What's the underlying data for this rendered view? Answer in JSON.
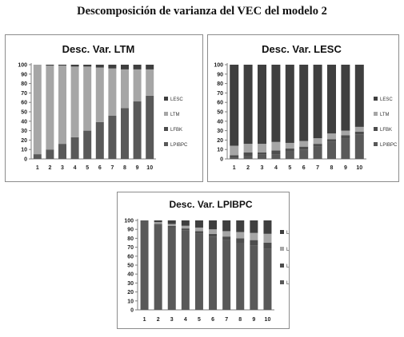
{
  "page": {
    "title": "Descomposición de varianza del VEC del modelo 2"
  },
  "colors": {
    "LESC": "#3f3f3f",
    "LTM": "#a6a6a6",
    "LFBK": "#4d4d4d",
    "LPIBPC": "#595959"
  },
  "chart_data": [
    {
      "type": "bar",
      "stacked": true,
      "title": "Desc. Var. LTM",
      "categories": [
        "1",
        "2",
        "3",
        "4",
        "5",
        "6",
        "7",
        "8",
        "9",
        "10"
      ],
      "ylim": [
        0,
        100
      ],
      "yticks": [
        0,
        10,
        20,
        30,
        40,
        50,
        60,
        70,
        80,
        90,
        100
      ],
      "legend_position": "right",
      "series": [
        {
          "name": "LPIBPC",
          "values": [
            5,
            10,
            16,
            23,
            30,
            39,
            46,
            54,
            61,
            67
          ]
        },
        {
          "name": "LFBK",
          "values": [
            0,
            0,
            0,
            0,
            0,
            0,
            0,
            0,
            0,
            0
          ]
        },
        {
          "name": "LTM",
          "values": [
            95,
            89,
            83,
            75,
            68,
            58,
            50,
            41,
            34,
            28
          ]
        },
        {
          "name": "LESC",
          "values": [
            0,
            1,
            1,
            2,
            2,
            3,
            4,
            5,
            5,
            5
          ]
        }
      ]
    },
    {
      "type": "bar",
      "stacked": true,
      "title": "Desc. Var. LESC",
      "categories": [
        "1",
        "2",
        "3",
        "4",
        "5",
        "6",
        "7",
        "8",
        "9",
        "10"
      ],
      "ylim": [
        0,
        100
      ],
      "yticks": [
        0,
        10,
        20,
        30,
        40,
        50,
        60,
        70,
        80,
        90,
        100
      ],
      "legend_position": "right",
      "series": [
        {
          "name": "LPIBPC",
          "values": [
            1,
            3,
            5,
            5,
            8,
            10,
            13,
            18,
            22,
            26
          ]
        },
        {
          "name": "LFBK",
          "values": [
            3,
            4,
            2,
            4,
            3,
            3,
            3,
            3,
            3,
            3
          ]
        },
        {
          "name": "LTM",
          "values": [
            10,
            9,
            9,
            9,
            6,
            6,
            6,
            6,
            5,
            5
          ]
        },
        {
          "name": "LESC",
          "values": [
            86,
            84,
            84,
            82,
            83,
            81,
            78,
            73,
            70,
            66
          ]
        }
      ]
    },
    {
      "type": "bar",
      "stacked": true,
      "title": "Desc. Var. LPIBPC",
      "categories": [
        "1",
        "2",
        "3",
        "4",
        "5",
        "6",
        "7",
        "8",
        "9",
        "10"
      ],
      "ylim": [
        0,
        100
      ],
      "yticks": [
        0,
        10,
        20,
        30,
        40,
        50,
        60,
        70,
        80,
        90,
        100
      ],
      "legend_position": "right",
      "series": [
        {
          "name": "LPIBPC",
          "values": [
            100,
            95,
            92,
            89,
            85,
            82,
            78,
            75,
            72,
            68
          ]
        },
        {
          "name": "LFBK",
          "values": [
            0,
            1,
            2,
            2,
            3,
            3,
            4,
            5,
            6,
            7
          ]
        },
        {
          "name": "LTM",
          "values": [
            0,
            2,
            2,
            3,
            4,
            5,
            6,
            7,
            8,
            10
          ]
        },
        {
          "name": "LESC",
          "values": [
            0,
            2,
            4,
            6,
            8,
            10,
            12,
            13,
            14,
            15
          ]
        }
      ]
    }
  ]
}
